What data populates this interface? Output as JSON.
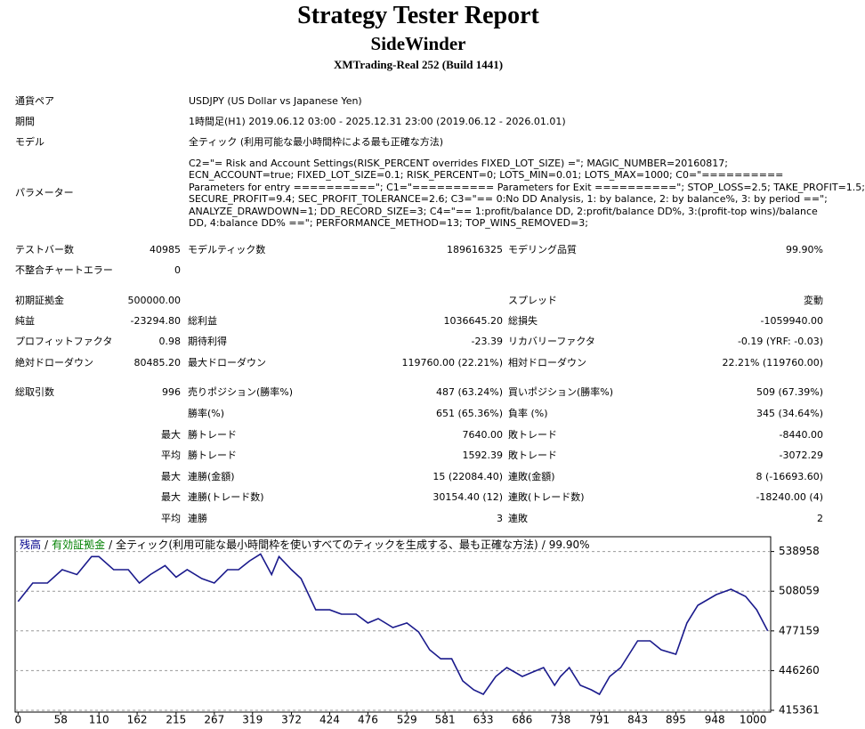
{
  "header": {
    "title": "Strategy Tester Report",
    "subtitle": "SideWinder",
    "broker": "XMTrading-Real 252 (Build 1441)"
  },
  "info": [
    {
      "label": "通貨ペア",
      "value": "USDJPY (US Dollar vs Japanese Yen)"
    },
    {
      "label": "期間",
      "value": "1時間足(H1) 2019.06.12 03:00 - 2025.12.31 23:00 (2019.06.12 - 2026.01.01)"
    },
    {
      "label": "モデル",
      "value": "全ティック (利用可能な最小時間枠による最も正確な方法)"
    }
  ],
  "parameters": {
    "label": "パラメーター",
    "lines": [
      "C2=\"= Risk and Account Settings(RISK_PERCENT overrides FIXED_LOT_SIZE) =\"; MAGIC_NUMBER=20160817;",
      "ECN_ACCOUNT=true; FIXED_LOT_SIZE=0.1; RISK_PERCENT=0; LOTS_MIN=0.01; LOTS_MAX=1000; C0=\"==========",
      "Parameters for entry ==========\"; C1=\"========== Parameters for Exit ==========\"; STOP_LOSS=2.5; TAKE_PROFIT=1.5;",
      "SECURE_PROFIT=9.4; SEC_PROFIT_TOLERANCE=2.6; C3=\"== 0:No DD Analysis, 1: by balance, 2: by balance%, 3: by period ==\";",
      "ANALYZE_DRAWDOWN=1; DD_RECORD_SIZE=3; C4=\"== 1:profit/balance DD, 2:profit/balance DD%, 3:(profit-top wins)/balance",
      "DD, 4:balance DD% ==\"; PERFORMANCE_METHOD=13; TOP_WINS_REMOVED=3;"
    ]
  },
  "stats": {
    "rows": [
      [
        "テストバー数",
        "40985",
        "モデルティック数",
        "189616325",
        "モデリング品質",
        "99.90%"
      ],
      [
        "不整合チャートエラー",
        "0",
        null,
        null,
        null,
        null
      ],
      [
        "初期証拠金",
        "500000.00",
        null,
        null,
        "スプレッド",
        "変動"
      ],
      [
        "純益",
        "-23294.80",
        "総利益",
        "1036645.20",
        "総損失",
        "-1059940.00"
      ],
      [
        "プロフィットファクタ",
        "0.98",
        "期待利得",
        "-23.39",
        "リカバリーファクタ",
        "-0.19 (YRF: -0.03)"
      ],
      [
        "絶対ドローダウン",
        "80485.20",
        "最大ドローダウン",
        "119760.00 (22.21%)",
        "相対ドローダウン",
        "22.21% (119760.00)"
      ],
      [
        "総取引数",
        "996",
        "売りポジション(勝率%)",
        "487 (63.24%)",
        "買いポジション(勝率%)",
        "509 (67.39%)"
      ],
      [
        null,
        null,
        "勝率(%)",
        "651 (65.36%)",
        "負率 (%)",
        "345 (34.64%)"
      ],
      [
        null,
        "最大",
        "勝トレード",
        "7640.00",
        "敗トレード",
        "-8440.00"
      ],
      [
        null,
        "平均",
        "勝トレード",
        "1592.39",
        "敗トレード",
        "-3072.29"
      ],
      [
        null,
        "最大",
        "連勝(金額)",
        "15 (22084.40)",
        "連敗(金額)",
        "8 (-16693.60)"
      ],
      [
        null,
        "最大",
        "連勝(トレード数)",
        "30154.40 (12)",
        "連敗(トレード数)",
        "-18240.00 (4)"
      ],
      [
        null,
        "平均",
        "連勝",
        "3",
        "連敗",
        "2"
      ]
    ]
  },
  "chart_data": {
    "type": "line",
    "separator": "/",
    "equity_label": "有効証拠金",
    "description": "全ティック(利用可能な最小時間枠を使いすべてのティックを生成する、最も正確な方法)",
    "quality": "99.90%",
    "x": [
      0,
      20,
      40,
      60,
      80,
      100,
      110,
      130,
      150,
      165,
      180,
      200,
      215,
      230,
      250,
      267,
      285,
      300,
      315,
      330,
      345,
      355,
      372,
      385,
      405,
      424,
      440,
      460,
      476,
      490,
      510,
      529,
      545,
      560,
      575,
      590,
      605,
      620,
      633,
      650,
      665,
      686,
      700,
      715,
      730,
      738,
      750,
      765,
      780,
      791,
      805,
      820,
      843,
      860,
      875,
      895,
      910,
      925,
      950,
      970,
      990,
      1005,
      1020
    ],
    "series": [
      {
        "name": "残高",
        "color": "#1a1a8c",
        "values": [
          500000,
          514400,
          514400,
          524800,
          521000,
          535000,
          535000,
          524800,
          524800,
          514400,
          521000,
          528000,
          519000,
          524800,
          517900,
          514400,
          524800,
          524800,
          531700,
          537000,
          521000,
          535000,
          524800,
          517900,
          493600,
          493600,
          490200,
          490200,
          483300,
          486700,
          479800,
          483300,
          476300,
          462500,
          455500,
          455500,
          438200,
          431300,
          427800,
          441700,
          448600,
          441700,
          445100,
          448600,
          434800,
          441700,
          448600,
          434800,
          431300,
          427800,
          441700,
          448600,
          469400,
          469400,
          462500,
          459000,
          483300,
          497100,
          505400,
          509600,
          504000,
          493600,
          477200
        ]
      }
    ],
    "xlim": [
      -4,
      1024
    ],
    "ylim": [
      415361,
      550460
    ],
    "xticks": [
      0,
      58,
      110,
      162,
      215,
      267,
      319,
      372,
      424,
      476,
      529,
      581,
      633,
      686,
      738,
      791,
      843,
      895,
      948,
      1000
    ],
    "yticks": [
      415361,
      446260,
      477159,
      508059,
      538958
    ],
    "grid": true
  }
}
